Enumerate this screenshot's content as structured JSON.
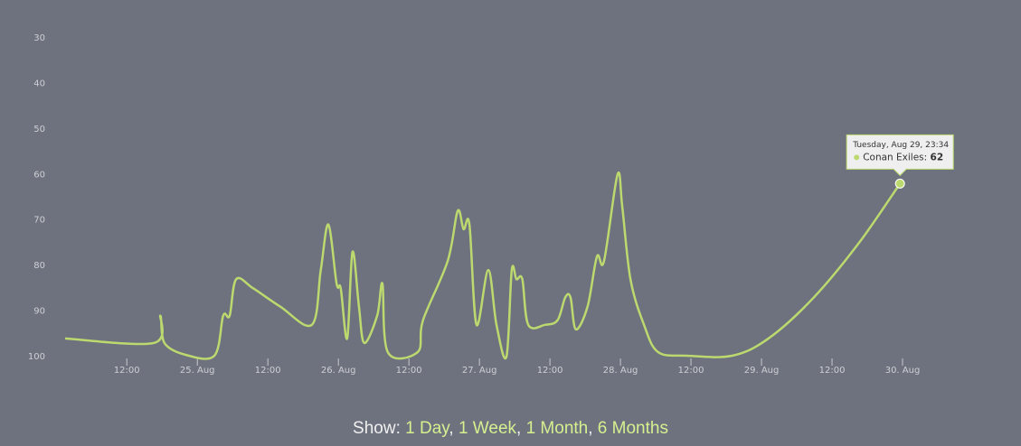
{
  "chart_data": {
    "type": "line",
    "reversed": true,
    "ylim": [
      30,
      100
    ],
    "yticks": [
      30,
      40,
      50,
      60,
      70,
      80,
      90,
      100
    ],
    "xlim": [
      "08-24T01:30",
      "08-30T12:00"
    ],
    "xticks": [
      {
        "value": "08-24T12:00",
        "label": "12:00"
      },
      {
        "value": "08-25T00:00",
        "label": "25. Aug"
      },
      {
        "value": "08-25T12:00",
        "label": "12:00"
      },
      {
        "value": "08-26T00:00",
        "label": "26. Aug"
      },
      {
        "value": "08-26T12:00",
        "label": "12:00"
      },
      {
        "value": "08-27T00:00",
        "label": "27. Aug"
      },
      {
        "value": "08-27T12:00",
        "label": "12:00"
      },
      {
        "value": "08-28T00:00",
        "label": "28. Aug"
      },
      {
        "value": "08-28T12:00",
        "label": "12:00"
      },
      {
        "value": "08-29T00:00",
        "label": "29. Aug"
      },
      {
        "value": "08-29T12:00",
        "label": "12:00"
      },
      {
        "value": "08-30T00:00",
        "label": "30. Aug"
      }
    ],
    "x": [
      "08-24T01:30",
      "08-24T16:36",
      "08-24T17:42",
      "08-24T18:24",
      "08-24T22:00",
      "08-25T02:54",
      "08-25T04:24",
      "08-25T05:30",
      "08-25T06:36",
      "08-25T09:30",
      "08-25T14:06",
      "08-25T19:30",
      "08-25T21:00",
      "08-25T22:18",
      "08-25T23:42",
      "08-26T00:24",
      "08-26T01:30",
      "08-26T02:24",
      "08-26T03:30",
      "08-26T04:24",
      "08-26T06:36",
      "08-26T07:30",
      "08-26T08:24",
      "08-26T13:30",
      "08-26T14:24",
      "08-26T18:36",
      "08-26T20:18",
      "08-26T21:18",
      "08-26T22:18",
      "08-26T23:30",
      "08-27T01:30",
      "08-27T02:54",
      "08-27T04:36",
      "08-27T05:30",
      "08-27T06:18",
      "08-27T07:18",
      "08-27T08:18",
      "08-27T11:12",
      "08-27T13:18",
      "08-27T14:36",
      "08-27T15:30",
      "08-27T16:24",
      "08-27T18:24",
      "08-27T20:00",
      "08-27T21:12",
      "08-27T23:30",
      "08-28T00:18",
      "08-28T01:42",
      "08-28T04:00",
      "08-28T06:24",
      "08-28T11:18",
      "08-28T19:00",
      "08-29T01:12",
      "08-29T08:54",
      "08-29T16:36",
      "08-29T23:34"
    ],
    "series": [
      {
        "name": "Conan Exiles",
        "color": "#bcd96f",
        "values": [
          96,
          97,
          91,
          97,
          99.6,
          99.8,
          91,
          91,
          83,
          85,
          89,
          93,
          81,
          71,
          84,
          85,
          96,
          77,
          89,
          97,
          91,
          84,
          99,
          99,
          92,
          79,
          68,
          72,
          71,
          93,
          81,
          93,
          100,
          81,
          83,
          83,
          93,
          93,
          92,
          87,
          87,
          94,
          89,
          78,
          79,
          60,
          67,
          83,
          93,
          99,
          99.8,
          99.8,
          96,
          87,
          75,
          62
        ]
      }
    ],
    "tooltip": {
      "title": "Tuesday, Aug 29, 23:34",
      "label": "Conan Exiles:"
    },
    "footer": {
      "label": "Show:",
      "separator": ",",
      "links": [
        "1 Day",
        "1 Week",
        "1 Month",
        "6 Months"
      ]
    }
  }
}
